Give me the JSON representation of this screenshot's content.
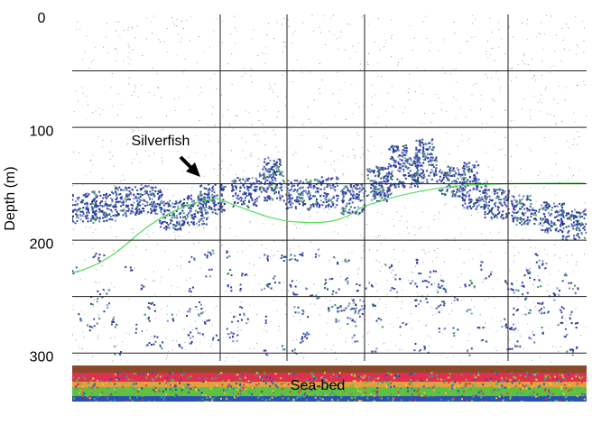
{
  "chart_data": {
    "type": "echogram",
    "y_label": "Depth (m)",
    "ylim": [
      0,
      343
    ],
    "yticks": [
      0,
      100,
      200,
      300
    ],
    "ygrid": [
      50,
      100,
      150,
      200,
      250,
      300
    ],
    "grid": true,
    "annotations": [
      "Silverfish",
      "Sea-bed"
    ]
  }
}
